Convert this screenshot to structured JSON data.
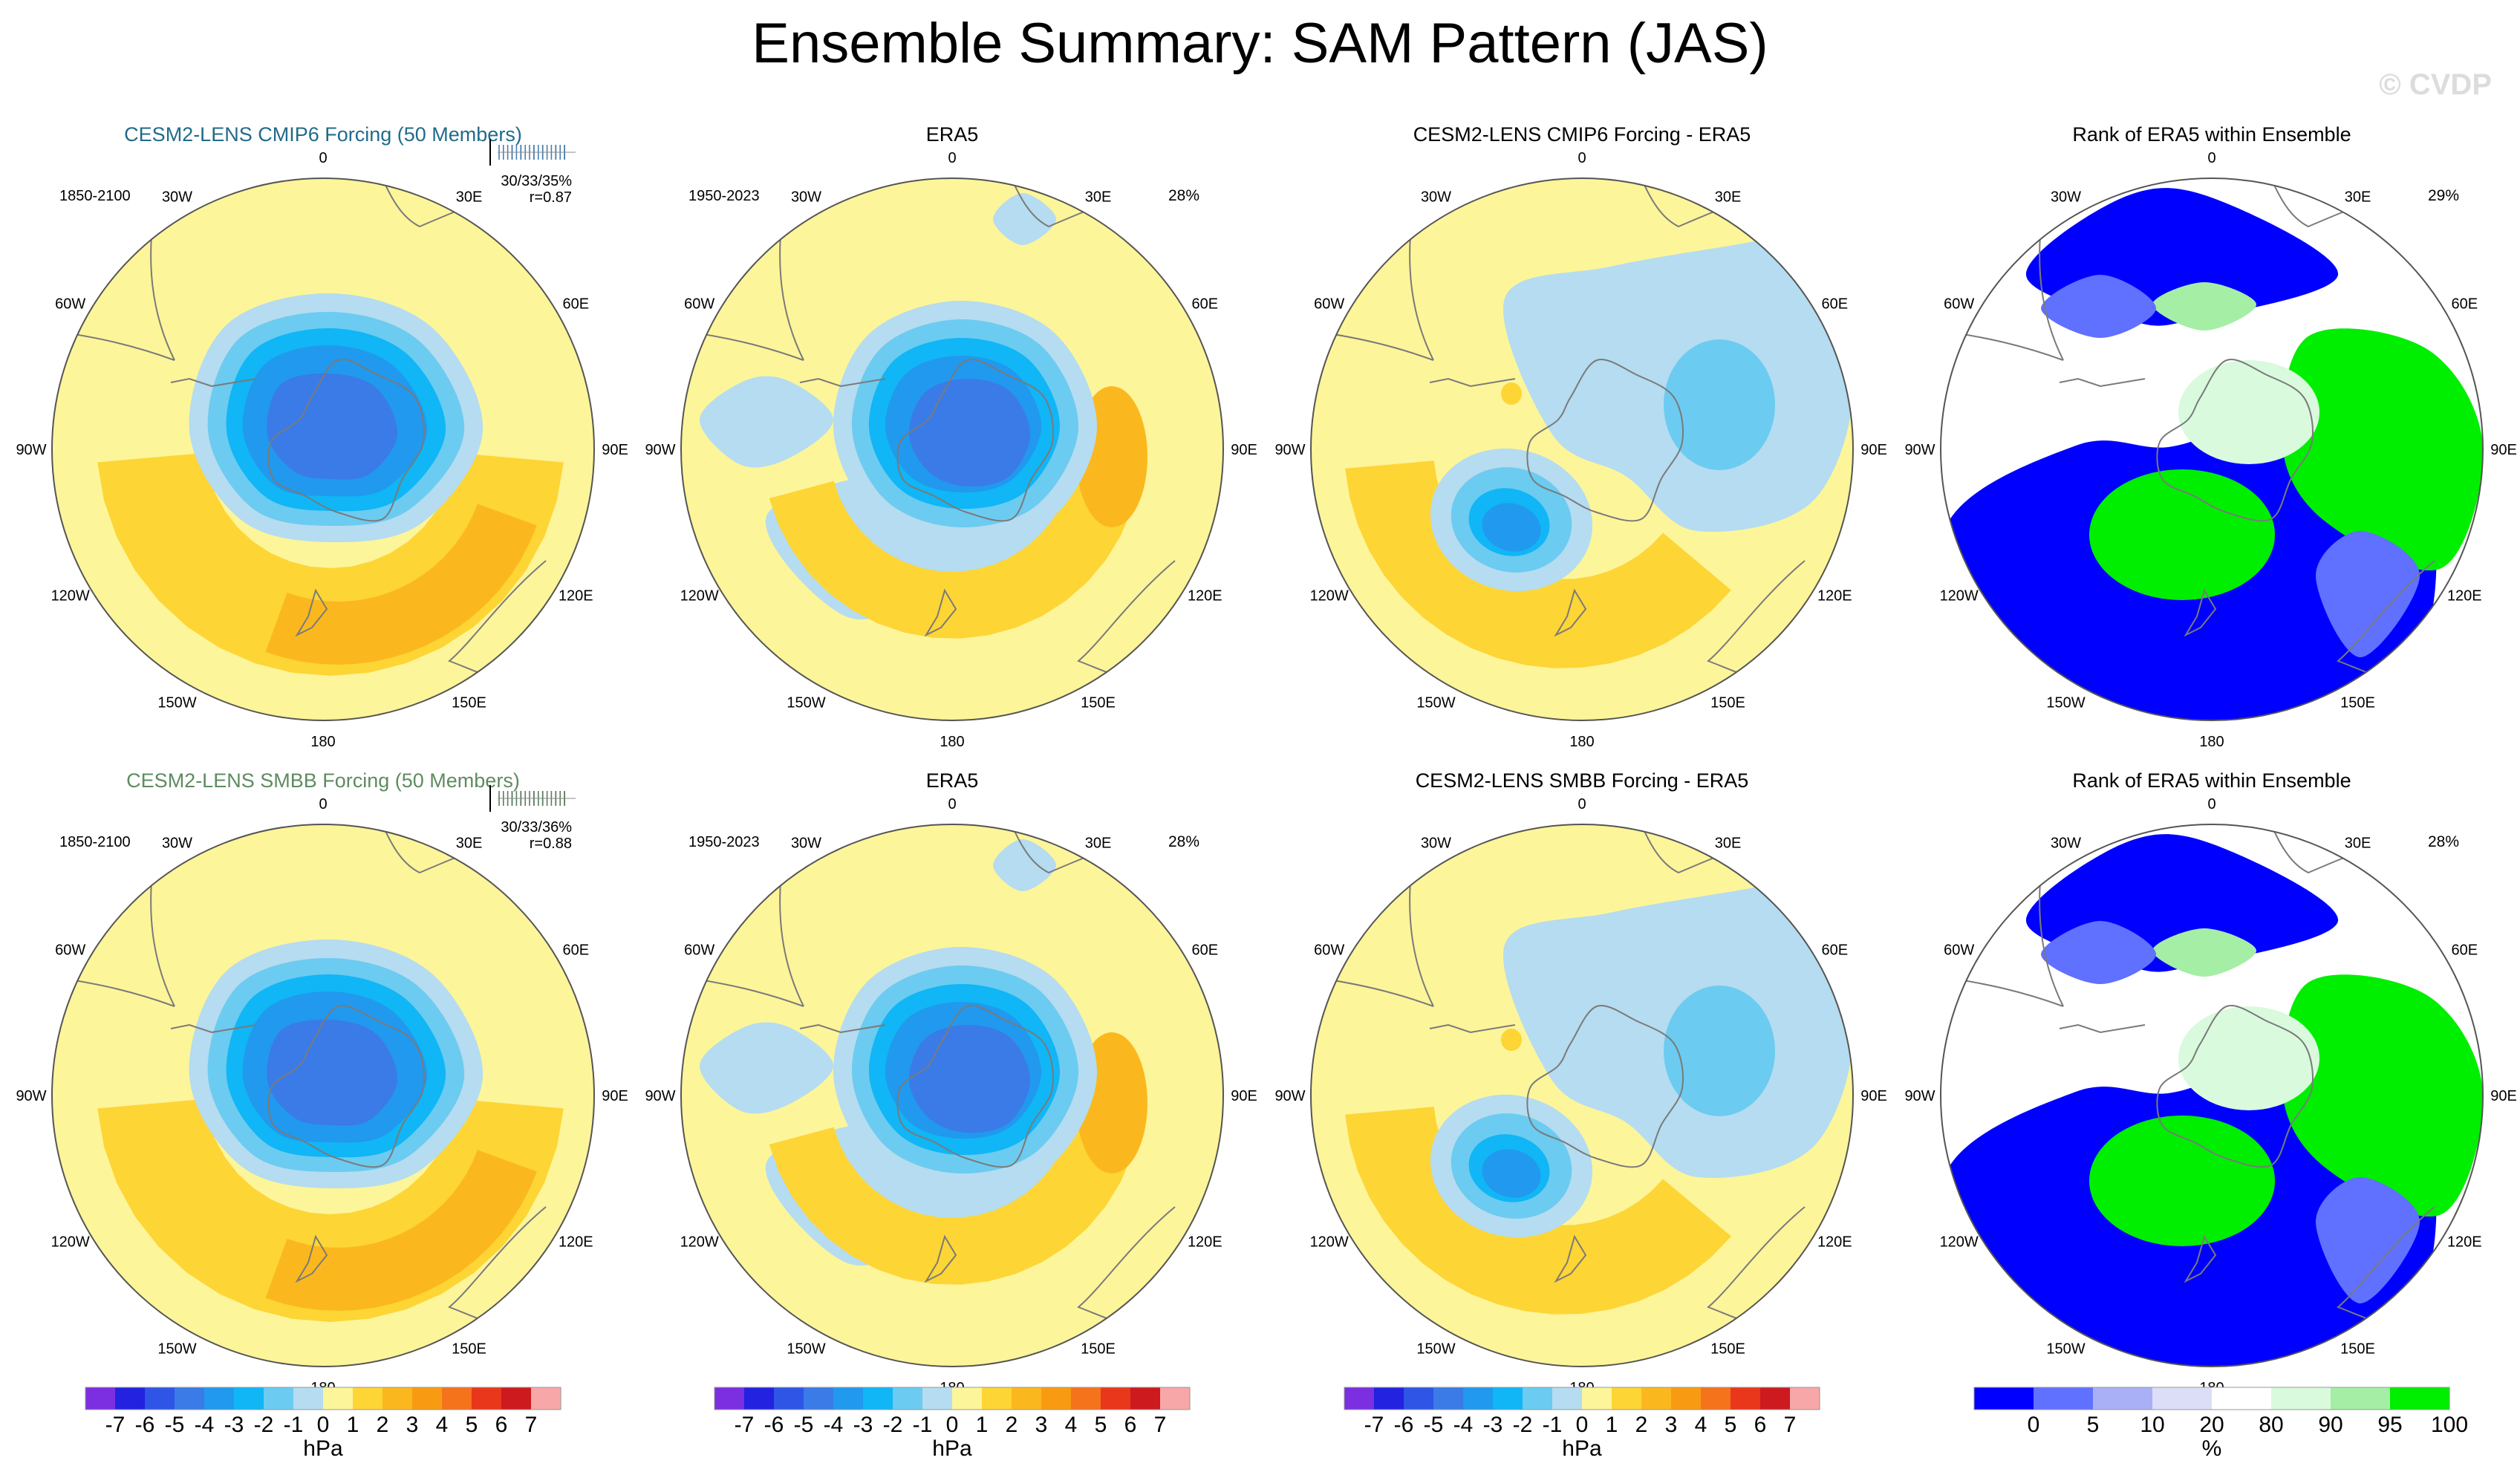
{
  "title": "Ensemble Summary: SAM Pattern (JAS)",
  "watermark": "© CVDP",
  "colors": {
    "ocean": "#fdf59a",
    "land_line": "#7a7a7a",
    "title_top_model": "#216b8a",
    "title_bottom_model": "#5d8c5f"
  },
  "lon_labels": [
    "0",
    "30E",
    "60E",
    "90E",
    "120E",
    "150E",
    "180",
    "150W",
    "120W",
    "90W",
    "60W",
    "30W"
  ],
  "chart_data": [
    {
      "id": "r1c1",
      "type": "heatmap",
      "projection": "south-polar-stereographic",
      "title": "CESM2-LENS CMIP6 Forcing (50 Members)",
      "period": "1850-2100",
      "stats": "30/33/35%",
      "corr": "r=0.87",
      "units": "hPa"
    },
    {
      "id": "r1c2",
      "type": "heatmap",
      "projection": "south-polar-stereographic",
      "title": "ERA5",
      "period": "1950-2023",
      "pct": "28%",
      "units": "hPa"
    },
    {
      "id": "r1c3",
      "type": "heatmap",
      "projection": "south-polar-stereographic",
      "title": "CESM2-LENS CMIP6 Forcing - ERA5",
      "units": "hPa"
    },
    {
      "id": "r1c4",
      "type": "heatmap",
      "projection": "south-polar-stereographic",
      "title": "Rank of ERA5 within Ensemble",
      "pct": "29%",
      "units": "%"
    },
    {
      "id": "r2c1",
      "type": "heatmap",
      "projection": "south-polar-stereographic",
      "title": "CESM2-LENS SMBB Forcing (50 Members)",
      "period": "1850-2100",
      "stats": "30/33/36%",
      "corr": "r=0.88",
      "units": "hPa"
    },
    {
      "id": "r2c2",
      "type": "heatmap",
      "projection": "south-polar-stereographic",
      "title": "ERA5",
      "period": "1950-2023",
      "pct": "28%",
      "units": "hPa"
    },
    {
      "id": "r2c3",
      "type": "heatmap",
      "projection": "south-polar-stereographic",
      "title": "CESM2-LENS SMBB Forcing - ERA5",
      "units": "hPa"
    },
    {
      "id": "r2c4",
      "type": "heatmap",
      "projection": "south-polar-stereographic",
      "title": "Rank of ERA5 within Ensemble",
      "pct": "28%",
      "units": "%"
    }
  ],
  "colorbar_hpa": {
    "labels": [
      "-7",
      "-6",
      "-5",
      "-4",
      "-3",
      "-2",
      "-1",
      "0",
      "1",
      "2",
      "3",
      "4",
      "5",
      "6",
      "7"
    ],
    "colors": [
      "#7b2fe0",
      "#2222e0",
      "#2e55e6",
      "#3a7be8",
      "#2199ee",
      "#10b6f5",
      "#6ccbf0",
      "#b5dcf0",
      "#fdf59a",
      "#fdd535",
      "#fbb81e",
      "#f99b12",
      "#f5731b",
      "#e9371b",
      "#cc1a1f",
      "#f7a7a7"
    ],
    "unit": "hPa"
  },
  "colorbar_pct": {
    "labels": [
      "0",
      "5",
      "10",
      "20",
      "80",
      "90",
      "95",
      "100"
    ],
    "colors": [
      "#0000ff",
      "#6070ff",
      "#aab0f6",
      "#dcdef8",
      "#ffffff",
      "#d9fadd",
      "#a5eea5",
      "#00ee00"
    ],
    "unit": "%"
  }
}
